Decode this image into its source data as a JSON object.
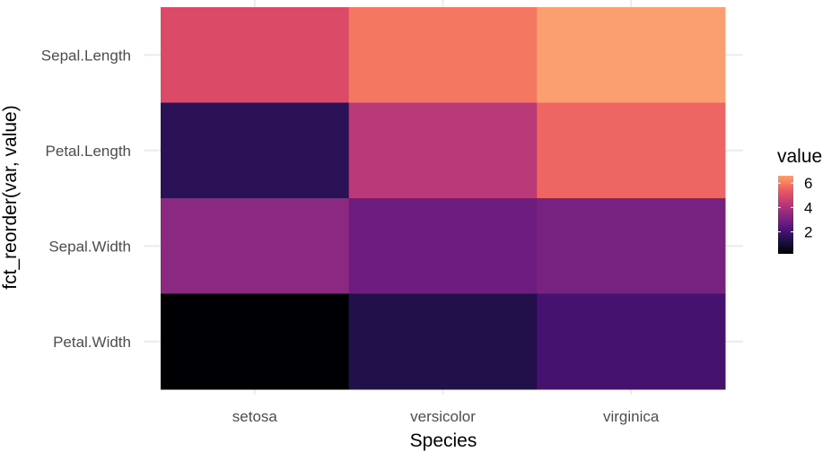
{
  "chart_data": {
    "type": "heatmap",
    "xlabel": "Species",
    "ylabel": "fct_reorder(var, value)",
    "x_categories": [
      "setosa",
      "versicolor",
      "virginica"
    ],
    "y_categories": [
      "Sepal.Length",
      "Petal.Length",
      "Sepal.Width",
      "Petal.Width"
    ],
    "values": [
      [
        5.0,
        5.9,
        6.6
      ],
      [
        1.5,
        4.3,
        5.6
      ],
      [
        3.4,
        2.8,
        3.0
      ],
      [
        0.2,
        1.3,
        2.0
      ]
    ],
    "legend": {
      "title": "value",
      "position": "right",
      "breaks": [
        2,
        4,
        6
      ],
      "range": [
        0.2,
        6.6
      ]
    },
    "colormap": [
      "#000004",
      "#1c1044",
      "#4f127b",
      "#812581",
      "#b5367a",
      "#e55064",
      "#fb8761",
      "#fec287",
      "#fcfdbf"
    ],
    "grid": true,
    "background": "#ffffff",
    "gridline_color": "#ebebeb"
  }
}
